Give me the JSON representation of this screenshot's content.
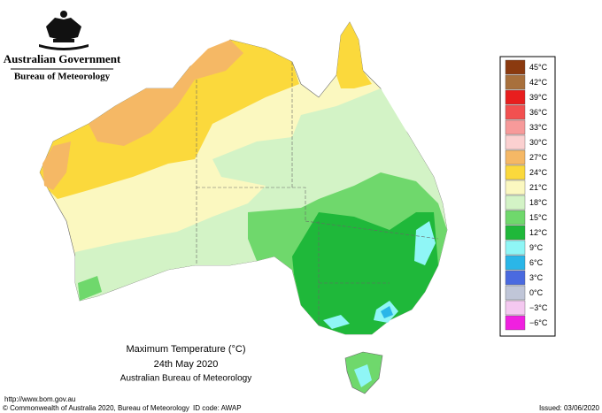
{
  "header": {
    "government": "Australian Government",
    "bureau": "Bureau of Meteorology"
  },
  "legend": [
    {
      "label": "45°C",
      "color": "#8b3a0f"
    },
    {
      "label": "42°C",
      "color": "#a8703c"
    },
    {
      "label": "39°C",
      "color": "#e81e1e"
    },
    {
      "label": "36°C",
      "color": "#f25050"
    },
    {
      "label": "33°C",
      "color": "#f79a9a"
    },
    {
      "label": "30°C",
      "color": "#fbd0d0"
    },
    {
      "label": "27°C",
      "color": "#f5b865"
    },
    {
      "label": "24°C",
      "color": "#fbd93c"
    },
    {
      "label": "21°C",
      "color": "#fbf8c0"
    },
    {
      "label": "18°C",
      "color": "#d3f3c6"
    },
    {
      "label": "15°C",
      "color": "#6fd86c"
    },
    {
      "label": "12°C",
      "color": "#1fb83a"
    },
    {
      "label": "9°C",
      "color": "#8ff6f6"
    },
    {
      "label": "6°C",
      "color": "#2ab6e8"
    },
    {
      "label": "3°C",
      "color": "#4a6ae0"
    },
    {
      "label": "0°C",
      "color": "#c0c6d8"
    },
    {
      "label": "−3°C",
      "color": "#f4c8f0"
    },
    {
      "label": "−6°C",
      "color": "#f020e0"
    }
  ],
  "map_title": {
    "line1": "Maximum Temperature (°C)",
    "line2": "24th May 2020",
    "line3": "Australian Bureau of Meteorology"
  },
  "footer": {
    "url": "http://www.bom.gov.au",
    "copyright": "© Commonwealth of Australia 2020, Bureau of Meteorology",
    "id_code": "ID code: AWAP",
    "issued": "Issued: 03/06/2020"
  }
}
